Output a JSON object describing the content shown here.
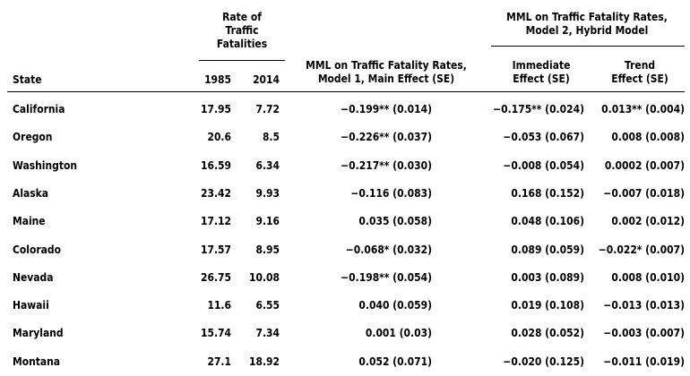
{
  "header": {
    "state": "State",
    "rate_group": [
      "Rate of",
      "Traffic",
      "Fatalities"
    ],
    "year_1985": "1985",
    "year_2014": "2014",
    "model1": [
      "MML on Traffic Fatality Rates,",
      "Model 1, Main Effect (SE)"
    ],
    "model2_group": [
      "MML on Traffic Fatality Rates,",
      "Model 2, Hybrid Model"
    ],
    "immediate": [
      "Immediate",
      "Effect (SE)"
    ],
    "trend": [
      "Trend",
      "Effect (SE)"
    ]
  },
  "rows": [
    {
      "state": "California",
      "r1985": "17.95",
      "r2014": "7.72",
      "m1": "−0.199** (0.014)",
      "imm": "−0.175** (0.024)",
      "trend": "0.013** (0.004)"
    },
    {
      "state": "Oregon",
      "r1985": "20.6",
      "r2014": "8.5",
      "m1": "−0.226** (0.037)",
      "imm": "−0.053 (0.067)",
      "trend": "0.008 (0.008)"
    },
    {
      "state": "Washington",
      "r1985": "16.59",
      "r2014": "6.34",
      "m1": "−0.217** (0.030)",
      "imm": "−0.008 (0.054)",
      "trend": "0.0002 (0.007)"
    },
    {
      "state": "Alaska",
      "r1985": "23.42",
      "r2014": "9.93",
      "m1": "−0.116 (0.083)",
      "imm": "0.168 (0.152)",
      "trend": "−0.007 (0.018)"
    },
    {
      "state": "Maine",
      "r1985": "17.12",
      "r2014": "9.16",
      "m1": "0.035 (0.058)",
      "imm": "0.048 (0.106)",
      "trend": "0.002 (0.012)"
    },
    {
      "state": "Colorado",
      "r1985": "17.57",
      "r2014": "8.95",
      "m1": "−0.068* (0.032)",
      "imm": "0.089 (0.059)",
      "trend": "−0.022* (0.007)"
    },
    {
      "state": "Nevada",
      "r1985": "26.75",
      "r2014": "10.08",
      "m1": "−0.198** (0.054)",
      "imm": "0.003 (0.089)",
      "trend": "0.008 (0.010)"
    },
    {
      "state": "Hawaii",
      "r1985": "11.6",
      "r2014": "6.55",
      "m1": "0.040 (0.059)",
      "imm": "0.019 (0.108)",
      "trend": "−0.013 (0.013)"
    },
    {
      "state": "Maryland",
      "r1985": "15.74",
      "r2014": "7.34",
      "m1": "0.001 (0.03)",
      "imm": "0.028 (0.052)",
      "trend": "−0.003 (0.007)"
    },
    {
      "state": "Montana",
      "r1985": "27.1",
      "r2014": "18.92",
      "m1": "0.052 (0.071)",
      "imm": "−0.020 (0.125)",
      "trend": "−0.011 (0.019)"
    }
  ]
}
